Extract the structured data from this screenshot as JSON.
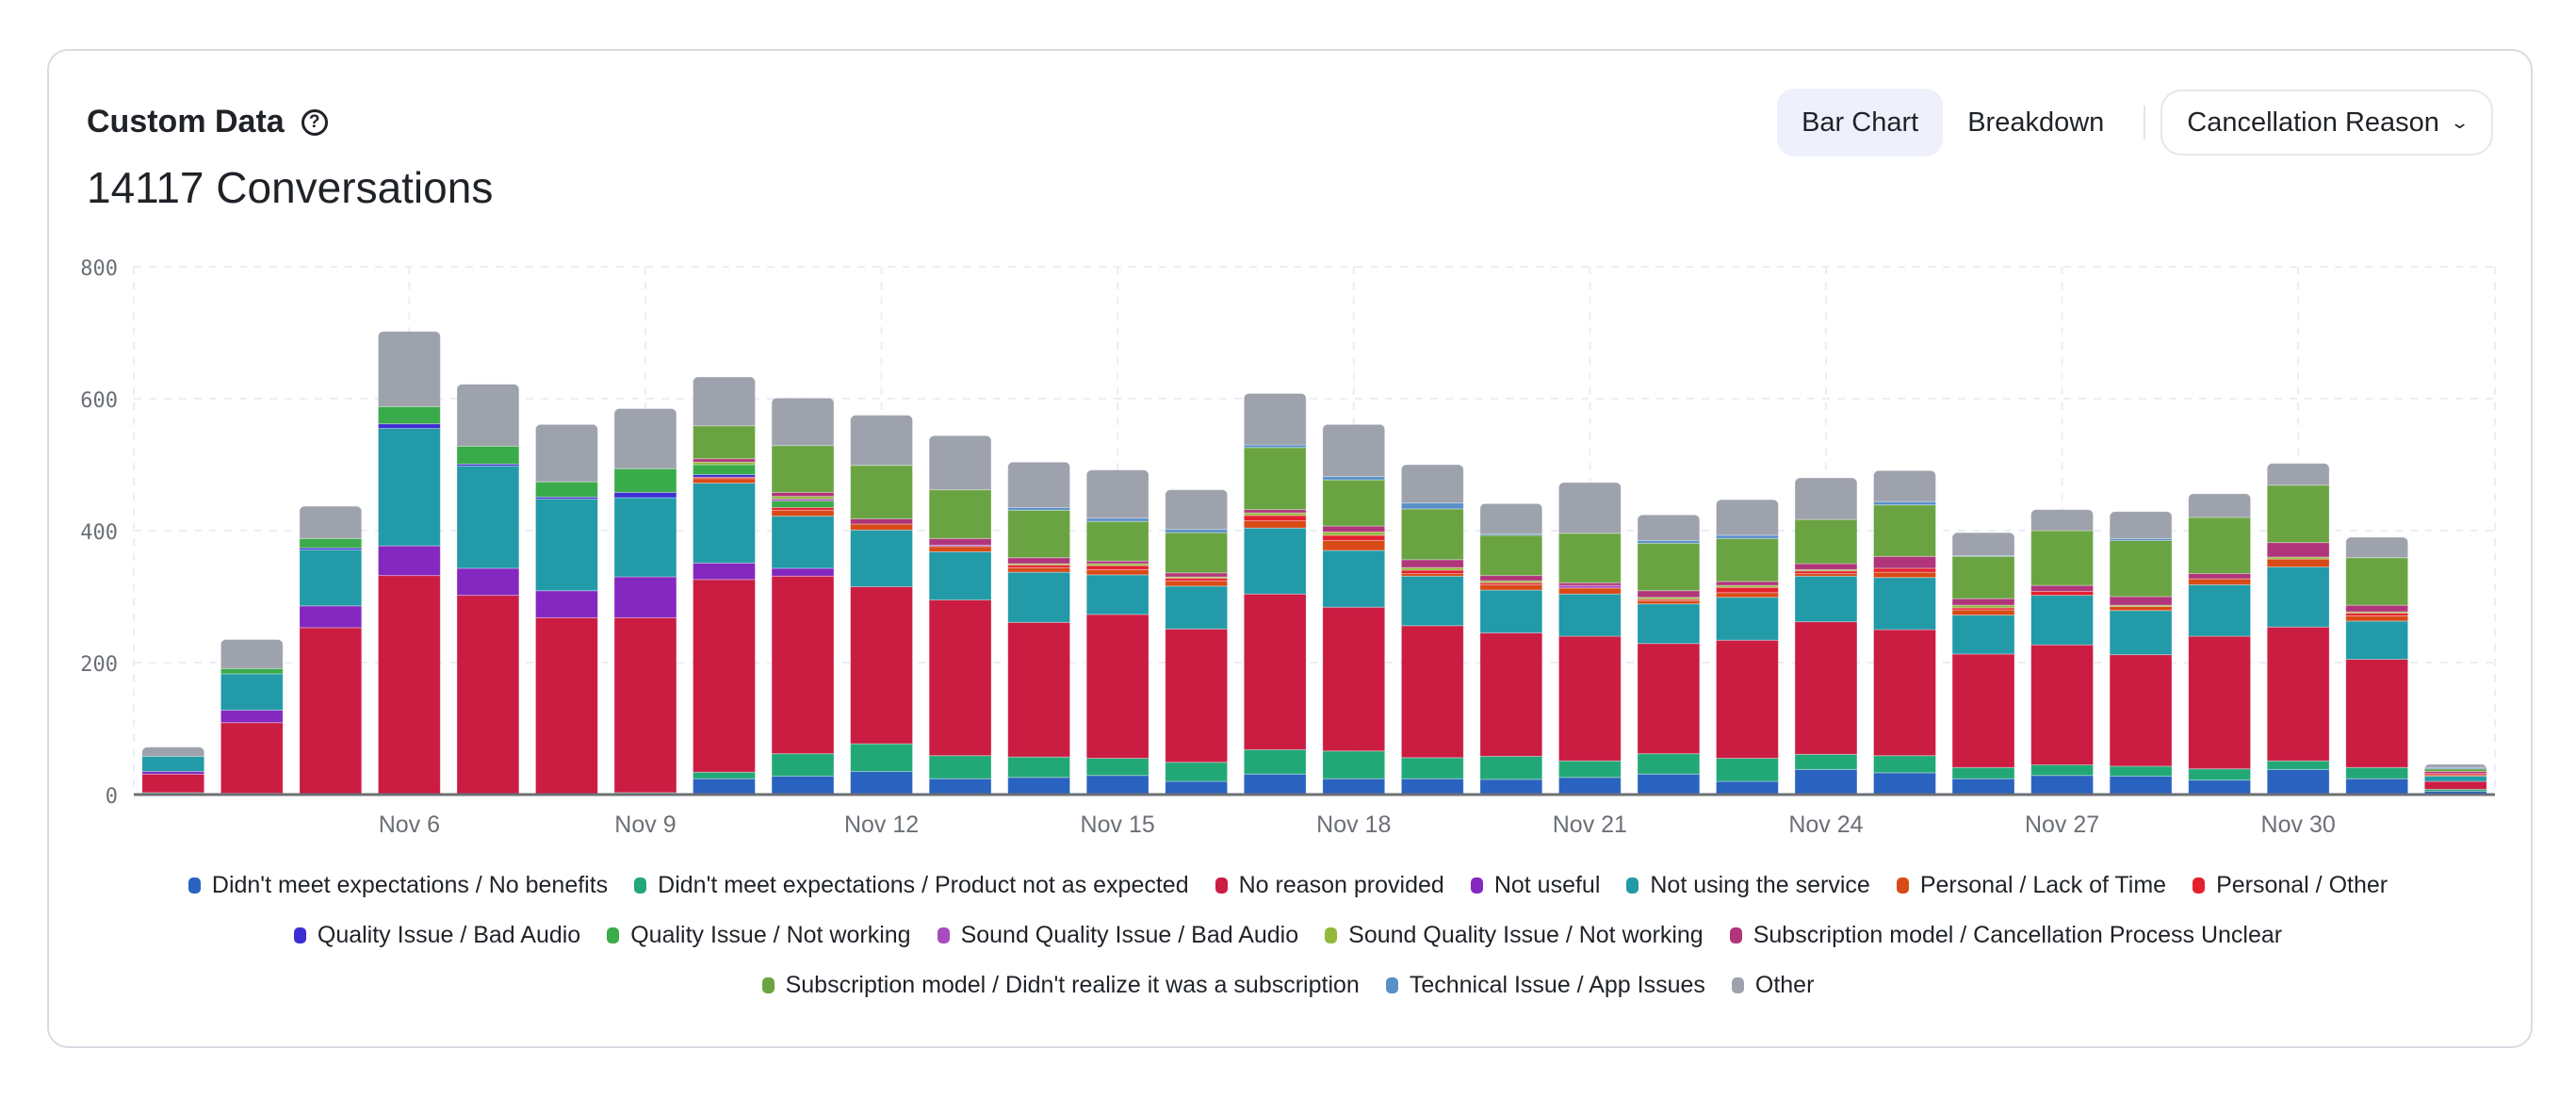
{
  "header": {
    "title": "Custom Data",
    "help_icon": "question-circle-icon",
    "subtitle": "14117 Conversations"
  },
  "controls": {
    "tabs": [
      {
        "label": "Bar Chart",
        "active": true
      },
      {
        "label": "Breakdown",
        "active": false
      }
    ],
    "dropdown": {
      "label": "Cancellation Reason",
      "icon": "chevron-down-icon"
    }
  },
  "chart_data": {
    "type": "bar",
    "stacked": true,
    "title": "",
    "xlabel": "",
    "ylabel": "",
    "ylim": [
      0,
      800
    ],
    "yticks": [
      0,
      200,
      400,
      600,
      800
    ],
    "grid": true,
    "legend_position": "bottom",
    "categories": [
      "Nov 3",
      "Nov 4",
      "Nov 5",
      "Nov 6",
      "Nov 7",
      "Nov 8",
      "Nov 9",
      "Nov 10",
      "Nov 11",
      "Nov 12",
      "Nov 13",
      "Nov 14",
      "Nov 15",
      "Nov 16",
      "Nov 17",
      "Nov 18",
      "Nov 19",
      "Nov 20",
      "Nov 21",
      "Nov 22",
      "Nov 23",
      "Nov 24",
      "Nov 25",
      "Nov 26",
      "Nov 27",
      "Nov 28",
      "Nov 29",
      "Nov 30",
      "Dec 1",
      "Dec 2"
    ],
    "xtick_labels": [
      "Nov 6",
      "Nov 9",
      "Nov 12",
      "Nov 15",
      "Nov 18",
      "Nov 21",
      "Nov 24",
      "Nov 27",
      "Nov 30"
    ],
    "series": [
      {
        "name": "Didn't meet expectations / No benefits",
        "color": "#2a62c0",
        "values": [
          0,
          2,
          0,
          0,
          0,
          0,
          0,
          24,
          28,
          35,
          24,
          26,
          29,
          20,
          31,
          24,
          24,
          23,
          26,
          31,
          20,
          38,
          33,
          24,
          29,
          28,
          22,
          38,
          24,
          5
        ]
      },
      {
        "name": "Didn't meet expectations / Product not as expected",
        "color": "#22a876",
        "values": [
          3,
          0,
          0,
          0,
          0,
          1,
          3,
          10,
          34,
          42,
          35,
          31,
          26,
          29,
          37,
          42,
          32,
          35,
          25,
          31,
          35,
          23,
          26,
          17,
          16,
          15,
          17,
          13,
          17,
          3
        ]
      },
      {
        "name": "No reason provided",
        "color": "#cb1c42",
        "values": [
          28,
          107,
          253,
          332,
          302,
          267,
          265,
          292,
          269,
          238,
          236,
          204,
          218,
          202,
          236,
          218,
          200,
          187,
          189,
          167,
          179,
          201,
          191,
          172,
          182,
          169,
          201,
          203,
          164,
          12
        ]
      },
      {
        "name": "Not useful",
        "color": "#8428c0",
        "values": [
          4,
          19,
          33,
          45,
          41,
          41,
          62,
          25,
          12,
          0,
          0,
          0,
          0,
          0,
          0,
          0,
          0,
          0,
          0,
          0,
          0,
          0,
          0,
          0,
          0,
          0,
          0,
          0,
          0,
          0
        ]
      },
      {
        "name": "Not using the service",
        "color": "#229aa8",
        "values": [
          23,
          55,
          85,
          178,
          155,
          139,
          120,
          121,
          79,
          86,
          73,
          76,
          60,
          65,
          100,
          86,
          75,
          65,
          64,
          60,
          65,
          69,
          79,
          59,
          75,
          67,
          78,
          91,
          58,
          8
        ]
      },
      {
        "name": "Personal / Lack of Time",
        "color": "#d84a16",
        "values": [
          0,
          0,
          0,
          0,
          0,
          0,
          0,
          7,
          9,
          9,
          8,
          7,
          8,
          8,
          11,
          15,
          4,
          8,
          9,
          5,
          7,
          4,
          8,
          8,
          0,
          6,
          9,
          12,
          8,
          2
        ]
      },
      {
        "name": "Personal / Other",
        "color": "#e3202e",
        "values": [
          0,
          0,
          0,
          0,
          0,
          0,
          0,
          2,
          4,
          0,
          0,
          4,
          6,
          4,
          8,
          8,
          5,
          3,
          0,
          2,
          8,
          4,
          6,
          3,
          6,
          0,
          0,
          0,
          4,
          2
        ]
      },
      {
        "name": "Quality Issue / Bad Audio",
        "color": "#3d2ed4",
        "values": [
          0,
          0,
          3,
          7,
          3,
          3,
          8,
          4,
          0,
          0,
          0,
          0,
          0,
          0,
          0,
          0,
          0,
          0,
          0,
          0,
          0,
          0,
          0,
          0,
          0,
          0,
          0,
          0,
          0,
          0
        ]
      },
      {
        "name": "Quality Issue / Not working",
        "color": "#3aab4a",
        "values": [
          0,
          8,
          14,
          26,
          27,
          23,
          36,
          15,
          10,
          0,
          0,
          0,
          0,
          0,
          0,
          0,
          0,
          0,
          0,
          0,
          0,
          0,
          0,
          0,
          0,
          0,
          0,
          0,
          0,
          0
        ]
      },
      {
        "name": "Sound Quality Issue / Bad Audio",
        "color": "#a84cc0",
        "values": [
          0,
          0,
          0,
          0,
          0,
          0,
          0,
          0,
          3,
          0,
          2,
          0,
          0,
          0,
          0,
          0,
          0,
          0,
          4,
          0,
          0,
          0,
          0,
          0,
          0,
          0,
          0,
          0,
          0,
          0
        ]
      },
      {
        "name": "Sound Quality Issue / Not working",
        "color": "#94b83a",
        "values": [
          0,
          0,
          0,
          0,
          0,
          0,
          0,
          4,
          4,
          0,
          0,
          2,
          3,
          2,
          4,
          5,
          4,
          3,
          0,
          3,
          3,
          2,
          0,
          4,
          0,
          2,
          0,
          3,
          2,
          0
        ]
      },
      {
        "name": "Subscription model / Cancellation Process Unclear",
        "color": "#b0357a",
        "values": [
          0,
          0,
          0,
          0,
          0,
          0,
          0,
          5,
          6,
          8,
          10,
          9,
          4,
          6,
          5,
          9,
          12,
          8,
          4,
          10,
          6,
          9,
          18,
          10,
          9,
          13,
          8,
          22,
          10,
          3
        ]
      },
      {
        "name": "Subscription model / Didn't realize it was a subscription",
        "color": "#6aa442",
        "values": [
          0,
          0,
          0,
          0,
          0,
          0,
          0,
          50,
          71,
          81,
          74,
          72,
          60,
          61,
          94,
          70,
          77,
          61,
          75,
          72,
          65,
          67,
          78,
          64,
          83,
          85,
          85,
          87,
          72,
          4
        ]
      },
      {
        "name": "Technical Issue / App Issues",
        "color": "#5a90c8",
        "values": [
          0,
          0,
          0,
          0,
          0,
          0,
          0,
          0,
          0,
          0,
          0,
          4,
          5,
          5,
          4,
          5,
          9,
          2,
          0,
          4,
          5,
          0,
          5,
          1,
          0,
          3,
          0,
          0,
          0,
          2
        ]
      },
      {
        "name": "Other",
        "color": "#9ea2ac",
        "values": [
          14,
          44,
          49,
          114,
          94,
          87,
          91,
          74,
          72,
          76,
          82,
          69,
          73,
          60,
          78,
          79,
          58,
          46,
          77,
          39,
          54,
          63,
          47,
          35,
          32,
          41,
          36,
          33,
          31,
          5
        ]
      }
    ]
  }
}
